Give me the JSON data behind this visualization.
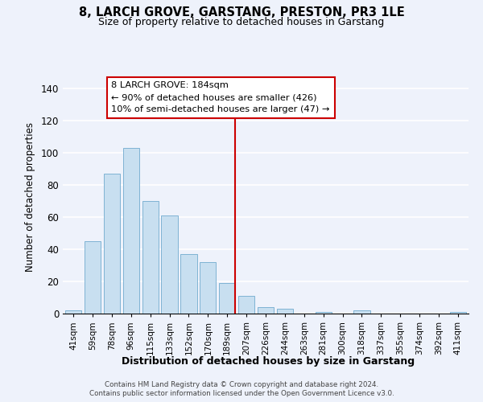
{
  "title": "8, LARCH GROVE, GARSTANG, PRESTON, PR3 1LE",
  "subtitle": "Size of property relative to detached houses in Garstang",
  "xlabel": "Distribution of detached houses by size in Garstang",
  "ylabel": "Number of detached properties",
  "bar_labels": [
    "41sqm",
    "59sqm",
    "78sqm",
    "96sqm",
    "115sqm",
    "133sqm",
    "152sqm",
    "170sqm",
    "189sqm",
    "207sqm",
    "226sqm",
    "244sqm",
    "263sqm",
    "281sqm",
    "300sqm",
    "318sqm",
    "337sqm",
    "355sqm",
    "374sqm",
    "392sqm",
    "411sqm"
  ],
  "bar_values": [
    2,
    45,
    87,
    103,
    70,
    61,
    37,
    32,
    19,
    11,
    4,
    3,
    0,
    1,
    0,
    2,
    0,
    0,
    0,
    0,
    1
  ],
  "bar_color": "#c8dff0",
  "bar_edge_color": "#7fb3d3",
  "vline_pos": 8.43,
  "property_line_label": "8 LARCH GROVE: 184sqm",
  "annotation_line1": "← 90% of detached houses are smaller (426)",
  "annotation_line2": "10% of semi-detached houses are larger (47) →",
  "vline_color": "#cc0000",
  "ylim": [
    0,
    145
  ],
  "annotation_box_color": "#ffffff",
  "annotation_box_edge": "#cc0000",
  "footer1": "Contains HM Land Registry data © Crown copyright and database right 2024.",
  "footer2": "Contains public sector information licensed under the Open Government Licence v3.0.",
  "background_color": "#eef2fb",
  "grid_color": "#ffffff"
}
